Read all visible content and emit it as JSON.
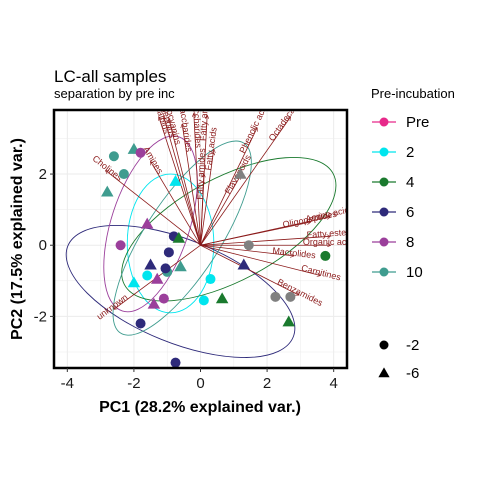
{
  "chart_data": {
    "type": "scatter",
    "title": "LC-all samples",
    "subtitle": "separation by pre inc",
    "xlabel": "PC1 (28.2% explained var.)",
    "ylabel": "PC2 (17.5% explained var.)",
    "xlim": [
      -4.4,
      4.4
    ],
    "ylim": [
      -3.45,
      3.8
    ],
    "x_ticks": [
      -4,
      -2,
      0,
      2,
      4
    ],
    "y_ticks": [
      -2,
      0,
      2
    ],
    "grid": true,
    "legend_title": "Pre-incubation",
    "legend_position": "right",
    "groups": [
      {
        "name": "Pre",
        "color": "#e7298a"
      },
      {
        "name": "2",
        "color": "#00e5ee"
      },
      {
        "name": "4",
        "color": "#1a7a2e"
      },
      {
        "name": "6",
        "color": "#2e2a7a"
      },
      {
        "name": "8",
        "color": "#9b3f9b"
      },
      {
        "name": "10",
        "color": "#3f9c8f"
      }
    ],
    "shape_legend": [
      {
        "name": "-2",
        "shape": "circle"
      },
      {
        "name": "-6",
        "shape": "triangle"
      }
    ],
    "points": [
      {
        "x": -2.6,
        "y": 2.5,
        "group": "10",
        "shape": "circle"
      },
      {
        "x": -2.3,
        "y": 2.0,
        "group": "10",
        "shape": "circle"
      },
      {
        "x": -2.0,
        "y": 2.7,
        "group": "10",
        "shape": "triangle"
      },
      {
        "x": -2.8,
        "y": 1.5,
        "group": "10",
        "shape": "triangle"
      },
      {
        "x": -1.8,
        "y": 2.6,
        "group": "8",
        "shape": "circle"
      },
      {
        "x": -2.4,
        "y": -0.0,
        "group": "8",
        "shape": "circle"
      },
      {
        "x": -1.6,
        "y": 0.6,
        "group": "8",
        "shape": "triangle"
      },
      {
        "x": -1.3,
        "y": -0.95,
        "group": "8",
        "shape": "triangle"
      },
      {
        "x": -1.4,
        "y": -1.65,
        "group": "8",
        "shape": "triangle"
      },
      {
        "x": -1.1,
        "y": -1.5,
        "group": "8",
        "shape": "circle"
      },
      {
        "x": -0.75,
        "y": 1.8,
        "group": "2",
        "shape": "triangle"
      },
      {
        "x": -2.0,
        "y": -1.05,
        "group": "2",
        "shape": "triangle"
      },
      {
        "x": -1.6,
        "y": -0.85,
        "group": "2",
        "shape": "circle"
      },
      {
        "x": 0.3,
        "y": -0.95,
        "group": "2",
        "shape": "circle"
      },
      {
        "x": 0.1,
        "y": -1.55,
        "group": "2",
        "shape": "circle"
      },
      {
        "x": -0.6,
        "y": -0.6,
        "group": "10",
        "shape": "triangle"
      },
      {
        "x": -1.0,
        "y": -0.75,
        "group": "10",
        "shape": "circle"
      },
      {
        "x": -1.5,
        "y": -0.55,
        "group": "6",
        "shape": "triangle"
      },
      {
        "x": -1.05,
        "y": -0.65,
        "group": "6",
        "shape": "circle"
      },
      {
        "x": -0.8,
        "y": 0.25,
        "group": "6",
        "shape": "circle"
      },
      {
        "x": -0.95,
        "y": -0.2,
        "group": "6",
        "shape": "circle"
      },
      {
        "x": -1.8,
        "y": -2.2,
        "group": "6",
        "shape": "circle"
      },
      {
        "x": -0.75,
        "y": -3.3,
        "group": "6",
        "shape": "circle"
      },
      {
        "x": 1.3,
        "y": -0.55,
        "group": "6",
        "shape": "triangle"
      },
      {
        "x": -0.65,
        "y": 0.2,
        "group": "4",
        "shape": "triangle"
      },
      {
        "x": 0.65,
        "y": -1.5,
        "group": "4",
        "shape": "triangle"
      },
      {
        "x": 2.65,
        "y": -2.15,
        "group": "4",
        "shape": "triangle"
      },
      {
        "x": 3.75,
        "y": -0.3,
        "group": "4",
        "shape": "circle"
      },
      {
        "x": 1.2,
        "y": 2.0,
        "group": "grey",
        "shape": "triangle"
      },
      {
        "x": 1.45,
        "y": 0.0,
        "group": "grey",
        "shape": "circle"
      },
      {
        "x": 2.25,
        "y": -1.45,
        "group": "grey",
        "shape": "circle"
      },
      {
        "x": 2.7,
        "y": -1.45,
        "group": "grey",
        "shape": "circle"
      }
    ],
    "loadings": [
      {
        "label": "Cholines",
        "x": -2.85,
        "y": 2.1
      },
      {
        "label": "Amines",
        "x": -1.5,
        "y": 2.35
      },
      {
        "label": "Alkaloids",
        "x": -1.25,
        "y": 3.6
      },
      {
        "label": "Terpenoids",
        "x": -1.1,
        "y": 3.6
      },
      {
        "label": "Anthocyanins",
        "x": -0.95,
        "y": 3.55
      },
      {
        "label": "Disaccharides",
        "x": -0.55,
        "y": 3.4
      },
      {
        "label": "Oligosaccharides",
        "x": -0.2,
        "y": 3.7
      },
      {
        "label": "Fatty amines",
        "x": 0.2,
        "y": 3.65
      },
      {
        "label": "Fatty amides",
        "x": 0.1,
        "y": 2.0
      },
      {
        "label": "Fatty acids",
        "x": 0.4,
        "y": 2.7
      },
      {
        "label": "Phenolic acids",
        "x": 1.7,
        "y": 3.3
      },
      {
        "label": "Octadecanoids",
        "x": 2.7,
        "y": 3.6
      },
      {
        "label": "Flavonoids",
        "x": 1.2,
        "y": 1.95
      },
      {
        "label": "Amino acids",
        "x": 3.9,
        "y": 0.8
      },
      {
        "label": "Oligopeptides",
        "x": 3.3,
        "y": 0.65
      },
      {
        "label": "Fatty esters",
        "x": 3.9,
        "y": 0.25
      },
      {
        "label": "Organic acids",
        "x": 3.9,
        "y": 0.0
      },
      {
        "label": "Carnitines",
        "x": 3.6,
        "y": -0.85
      },
      {
        "label": "Macrolides",
        "x": 2.8,
        "y": -0.3
      },
      {
        "label": "Benzamides",
        "x": 2.95,
        "y": -1.4
      },
      {
        "label": "unknown",
        "x": -2.6,
        "y": -1.8
      }
    ],
    "ellipses": [
      {
        "group": "2",
        "cx": -0.9,
        "cy": 0.05,
        "rx": 1.3,
        "ry": 1.95,
        "rot": 0
      },
      {
        "group": "4",
        "cx": 0.85,
        "cy": 0.45,
        "rx": 3.55,
        "ry": 1.45,
        "rot": -28
      },
      {
        "group": "6",
        "cx": -0.6,
        "cy": -1.3,
        "rx": 3.65,
        "ry": 1.45,
        "rot": 22
      },
      {
        "group": "8",
        "cx": -1.5,
        "cy": 0.6,
        "rx": 2.75,
        "ry": 1.1,
        "rot": -72
      },
      {
        "group": "10",
        "cx": -0.55,
        "cy": 0.2,
        "rx": 3.4,
        "ry": 1.05,
        "rot": -57
      }
    ]
  }
}
